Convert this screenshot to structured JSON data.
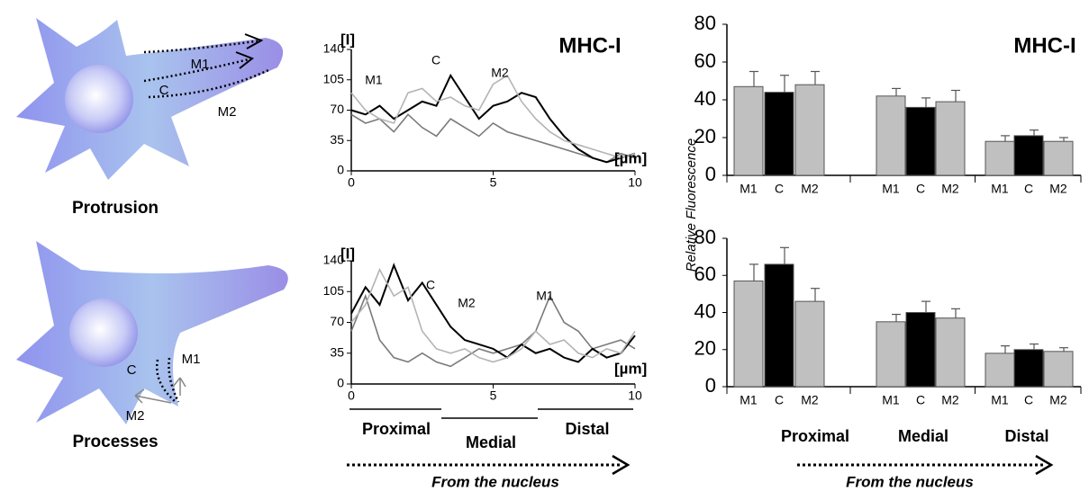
{
  "illustrations": [
    {
      "caption": "Protrusion",
      "labels": [
        "M1",
        "C",
        "M2"
      ]
    },
    {
      "caption": "Processes",
      "labels": [
        "M1",
        "C",
        "M2"
      ]
    }
  ],
  "chart_data": [
    {
      "type": "line",
      "title": "MHC-I",
      "y_label": "[I]",
      "x_label": "[µm]",
      "x": [
        0,
        0.5,
        1,
        1.5,
        2,
        2.5,
        3,
        3.5,
        4,
        4.5,
        5,
        5.5,
        6,
        6.5,
        7,
        7.5,
        8,
        8.5,
        9,
        9.5,
        10
      ],
      "xlim": [
        0,
        10
      ],
      "xticks": [
        0,
        5,
        10
      ],
      "ylim": [
        0,
        140
      ],
      "yticks": [
        0,
        35,
        70,
        105,
        140
      ],
      "series": [
        {
          "name": "M1",
          "color": "#7a7a7a",
          "values": [
            65,
            55,
            60,
            45,
            65,
            50,
            40,
            60,
            50,
            40,
            55,
            45,
            40,
            35,
            30,
            25,
            20,
            15,
            10,
            20,
            15
          ]
        },
        {
          "name": "C",
          "color": "#000000",
          "values": [
            70,
            65,
            75,
            60,
            70,
            80,
            75,
            110,
            85,
            60,
            75,
            80,
            90,
            85,
            60,
            40,
            25,
            15,
            10,
            15,
            20
          ]
        },
        {
          "name": "M2",
          "color": "#b4b4b4",
          "values": [
            90,
            70,
            60,
            55,
            90,
            95,
            80,
            85,
            75,
            70,
            100,
            110,
            80,
            60,
            45,
            35,
            30,
            25,
            20,
            15,
            20
          ]
        }
      ]
    },
    {
      "type": "line",
      "y_label": "[I]",
      "x_label": "[µm]",
      "x": [
        0,
        0.5,
        1,
        1.5,
        2,
        2.5,
        3,
        3.5,
        4,
        4.5,
        5,
        5.5,
        6,
        6.5,
        7,
        7.5,
        8,
        8.5,
        9,
        9.5,
        10
      ],
      "xlim": [
        0,
        10
      ],
      "xticks": [
        0,
        5,
        10
      ],
      "ylim": [
        0,
        140
      ],
      "yticks": [
        0,
        35,
        70,
        105,
        140
      ],
      "series": [
        {
          "name": "M1",
          "color": "#7a7a7a",
          "values": [
            60,
            100,
            50,
            30,
            25,
            35,
            25,
            20,
            30,
            40,
            35,
            40,
            45,
            60,
            100,
            70,
            60,
            40,
            45,
            50,
            40
          ]
        },
        {
          "name": "C",
          "color": "#000000",
          "values": [
            80,
            110,
            90,
            135,
            95,
            115,
            90,
            65,
            50,
            45,
            40,
            30,
            45,
            35,
            40,
            30,
            25,
            40,
            30,
            35,
            55
          ]
        },
        {
          "name": "M2",
          "color": "#b4b4b4",
          "values": [
            70,
            90,
            130,
            100,
            110,
            60,
            40,
            35,
            40,
            30,
            25,
            30,
            40,
            60,
            45,
            50,
            35,
            30,
            40,
            35,
            60
          ]
        }
      ],
      "group_labels": [
        "Proximal",
        "Medial",
        "Distal"
      ],
      "direction_label": "From the nucleus"
    },
    {
      "type": "bar",
      "title": "MHC-I",
      "y_label": "Relative Fluorescence",
      "categories": [
        "M1",
        "C",
        "M2",
        "M1",
        "C",
        "M2",
        "M1",
        "C",
        "M2"
      ],
      "values": [
        47,
        44,
        48,
        42,
        36,
        39,
        18,
        21,
        18
      ],
      "errors": [
        8,
        9,
        7,
        4,
        5,
        6,
        3,
        3,
        2
      ],
      "colors": [
        "#c0c0c0",
        "#000000",
        "#c0c0c0",
        "#c0c0c0",
        "#000000",
        "#c0c0c0",
        "#c0c0c0",
        "#000000",
        "#c0c0c0"
      ],
      "ylim": [
        0,
        80
      ],
      "yticks": [
        0,
        20,
        40,
        60,
        80
      ]
    },
    {
      "type": "bar",
      "categories": [
        "M1",
        "C",
        "M2",
        "M1",
        "C",
        "M2",
        "M1",
        "C",
        "M2"
      ],
      "values": [
        57,
        66,
        46,
        35,
        40,
        37,
        18,
        20,
        19
      ],
      "errors": [
        9,
        9,
        7,
        4,
        6,
        5,
        4,
        3,
        2
      ],
      "colors": [
        "#c0c0c0",
        "#000000",
        "#c0c0c0",
        "#c0c0c0",
        "#000000",
        "#c0c0c0",
        "#c0c0c0",
        "#000000",
        "#c0c0c0"
      ],
      "ylim": [
        0,
        80
      ],
      "yticks": [
        0,
        20,
        40,
        60,
        80
      ],
      "group_labels": [
        "Proximal",
        "Medial",
        "Distal"
      ],
      "direction_label": "From the nucleus"
    }
  ]
}
